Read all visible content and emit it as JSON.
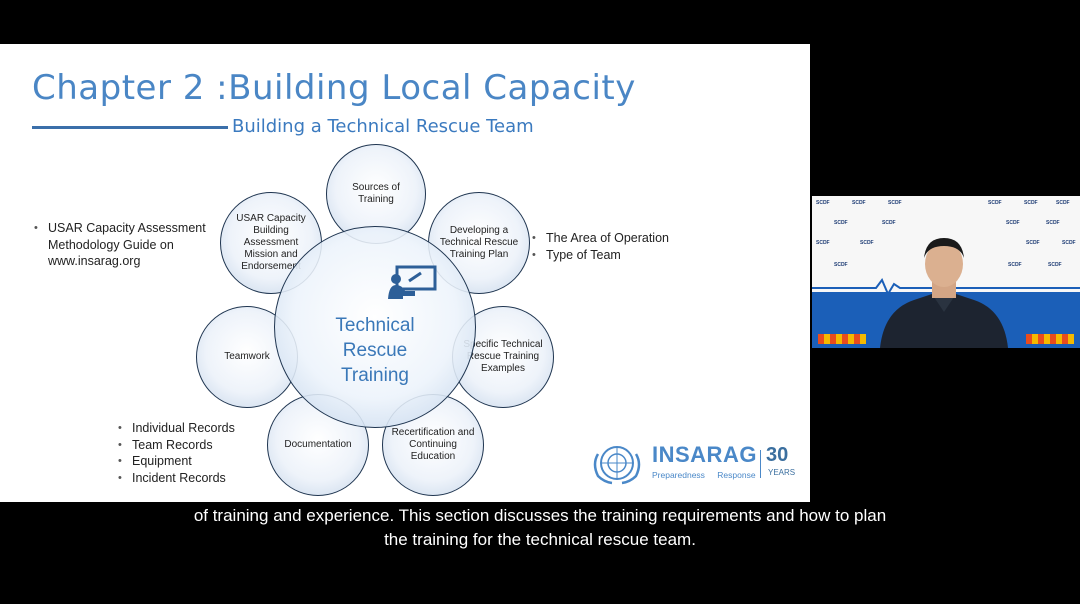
{
  "slide": {
    "title": "Chapter 2 :Building Local Capacity",
    "subtitle": "Building a Technical Rescue Team",
    "center_label": "Technical\nRescue\nTraining",
    "circles": [
      "Sources of Training",
      "Developing a Technical Rescue Training Plan",
      "Specific Technical Rescue Training Examples",
      "Recertification and Continuing Education",
      "Documentation",
      "Teamwork",
      "USAR Capacity Building Assessment Mission and Endorsement"
    ],
    "left_bullets": [
      "USAR Capacity Assessment Methodology Guide on www.insarag.org"
    ],
    "right_bullets": [
      "The Area of Operation",
      "Type of Team"
    ],
    "bottom_bullets": [
      "Individual Records",
      "Team Records",
      "Equipment",
      "Incident Records"
    ],
    "logo": {
      "name": "INSARAG",
      "tagline_left": "Preparedness",
      "tagline_right": "Response",
      "anniversary_number": "30",
      "anniversary_label": "YEARS"
    }
  },
  "video": {
    "backdrop_logo": "SCDF",
    "icon": "presenter-video-feed"
  },
  "captions": {
    "line1": "of training and experience. This section discusses the training requirements and how to plan",
    "line2": "the training for the technical rescue team."
  },
  "colors": {
    "title_blue": "#4a86c5",
    "circle_border": "#1f3550",
    "video_floor": "#1b5fb8"
  }
}
